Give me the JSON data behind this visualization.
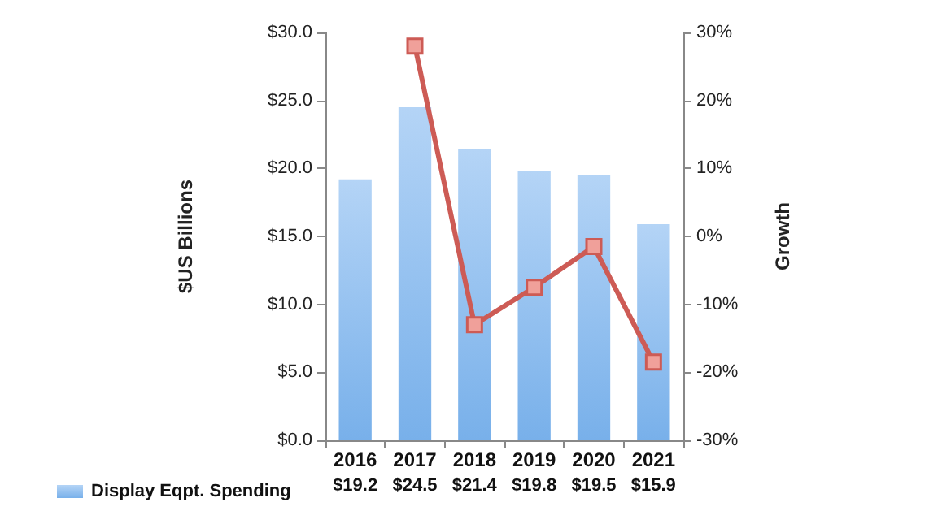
{
  "chart_data": {
    "type": "bar",
    "ylabel": "$US Billions",
    "y2label": "Growth",
    "categories": [
      "2016",
      "2017",
      "2018",
      "2019",
      "2020",
      "2021"
    ],
    "series": [
      {
        "name": "Display Eqpt. Spending",
        "color": "#78b0ea",
        "values": [
          19.2,
          24.5,
          21.4,
          19.8,
          19.5,
          15.9
        ],
        "value_labels": [
          "$19.2",
          "$24.5",
          "$21.4",
          "$19.8",
          "$19.5",
          "$15.9"
        ]
      },
      {
        "type": "line",
        "axis": "y2",
        "color": "#cd5b55",
        "values": [
          null,
          28,
          -13,
          -7.5,
          -1.5,
          -18.5
        ]
      }
    ],
    "ylim": [
      0,
      30
    ],
    "yticks": [
      {
        "value": 0,
        "label": "$0.0"
      },
      {
        "value": 5,
        "label": "$5.0"
      },
      {
        "value": 10,
        "label": "$10.0"
      },
      {
        "value": 15,
        "label": "$15.0"
      },
      {
        "value": 20,
        "label": "$20.0"
      },
      {
        "value": 25,
        "label": "$25.0"
      },
      {
        "value": 30,
        "label": "$30.0"
      }
    ],
    "y2lim": [
      -30,
      30
    ],
    "y2ticks": [
      {
        "value": -30,
        "label": "-30%"
      },
      {
        "value": -20,
        "label": "-20%"
      },
      {
        "value": -10,
        "label": "-10%"
      },
      {
        "value": 0,
        "label": "0%"
      },
      {
        "value": 10,
        "label": "10%"
      },
      {
        "value": 20,
        "label": "20%"
      },
      {
        "value": 30,
        "label": "30%"
      }
    ],
    "grid": false,
    "legend": "bottom left",
    "marker": "square",
    "line_style": "solid"
  }
}
